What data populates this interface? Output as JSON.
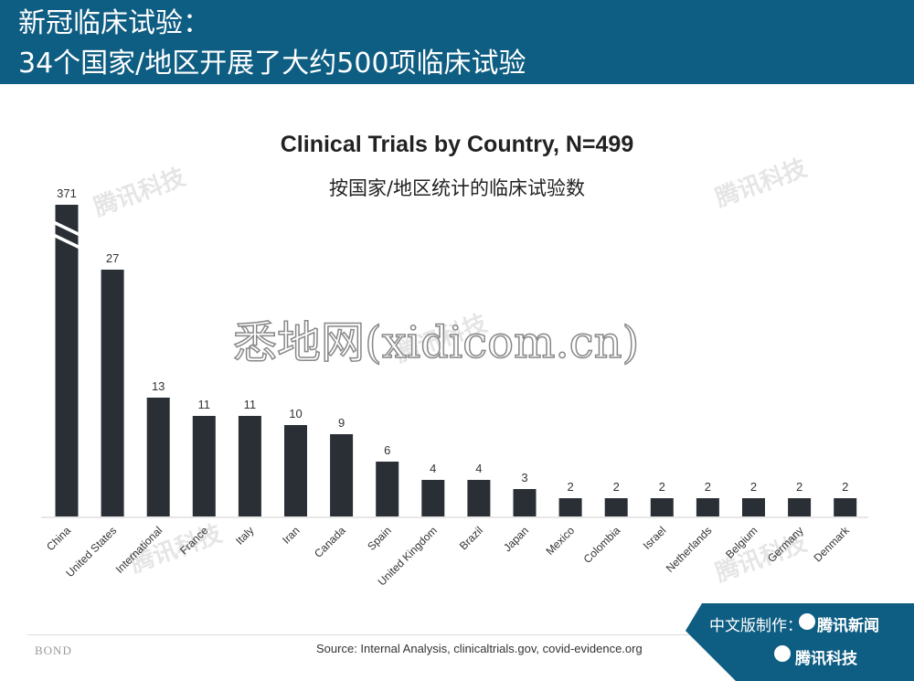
{
  "header": {
    "line1": "新冠临床试验：",
    "line2": "34个国家/地区开展了大约500项临床试验"
  },
  "chart_data": {
    "type": "bar",
    "title": "Clinical Trials by Country, N=499",
    "subtitle": "按国家/地区统计的临床试验数",
    "categories": [
      "China",
      "United States",
      "International",
      "France",
      "Italy",
      "Iran",
      "Canada",
      "Spain",
      "United Kingdom",
      "Brazil",
      "Japan",
      "Mexico",
      "Colombia",
      "Israel",
      "Netherlands",
      "Belgium",
      "Germany",
      "Denmark"
    ],
    "values": [
      371,
      27,
      13,
      11,
      11,
      10,
      9,
      6,
      4,
      4,
      3,
      2,
      2,
      2,
      2,
      2,
      2,
      2
    ],
    "axis_break": true,
    "bar_color": "#2a2f36",
    "grid": false,
    "legend": "none"
  },
  "source": "Source: Internal Analysis, clinicaltrials.gov, covid-evidence.org",
  "brand_text": "BOND",
  "credit": {
    "label": "中文版制作：",
    "brand1": "腾讯新闻",
    "brand2": "腾讯科技"
  },
  "watermark": {
    "overlay": "悉地网(xidicom.cn)",
    "brand": "腾讯科技"
  },
  "colors": {
    "header_bg": "#0e5d82",
    "credit_bg": "#0e5d82"
  }
}
